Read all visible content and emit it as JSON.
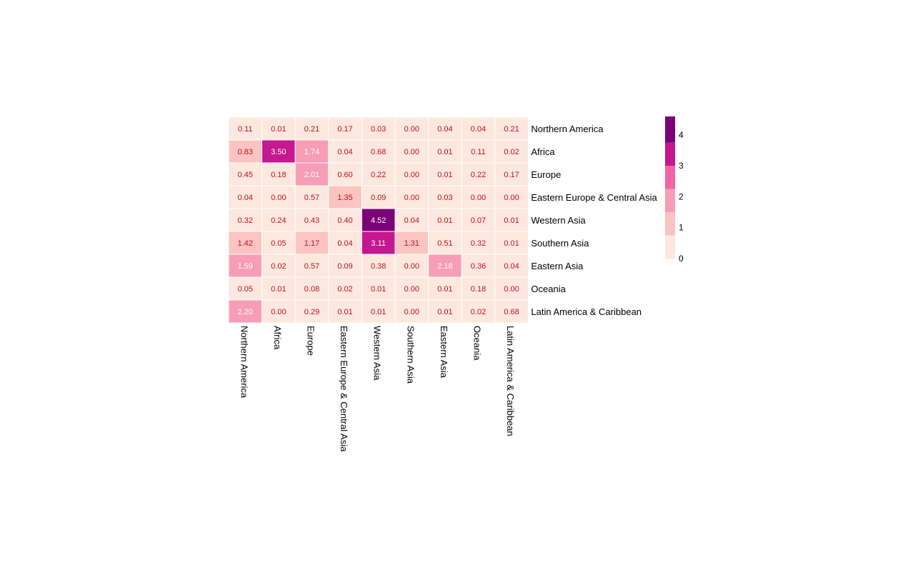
{
  "chart_data": {
    "type": "heatmap",
    "rows": [
      "Northern America",
      "Africa",
      "Europe",
      "Eastern Europe & Central Asia",
      "Western Asia",
      "Southern Asia",
      "Eastern Asia",
      "Oceania",
      "Latin America & Caribbean"
    ],
    "columns": [
      "Northern America",
      "Africa",
      "Europe",
      "Eastern Europe & Central Asia",
      "Western Asia",
      "Southern Asia",
      "Eastern Asia",
      "Oceania",
      "Latin America & Caribbean"
    ],
    "values": [
      [
        0.11,
        0.01,
        0.21,
        0.17,
        0.03,
        0.0,
        0.04,
        0.04,
        0.21
      ],
      [
        0.83,
        3.5,
        1.74,
        0.04,
        0.68,
        0.0,
        0.01,
        0.11,
        0.02
      ],
      [
        0.45,
        0.18,
        2.01,
        0.6,
        0.22,
        0.0,
        0.01,
        0.22,
        0.17
      ],
      [
        0.04,
        0.0,
        0.57,
        1.35,
        0.09,
        0.0,
        0.03,
        0.0,
        0.0
      ],
      [
        0.32,
        0.24,
        0.43,
        0.4,
        4.52,
        0.04,
        0.01,
        0.07,
        0.01
      ],
      [
        1.42,
        0.05,
        1.17,
        0.04,
        3.11,
        1.31,
        0.51,
        0.32,
        0.01
      ],
      [
        1.59,
        0.02,
        0.57,
        0.09,
        0.38,
        0.0,
        2.18,
        0.36,
        0.04
      ],
      [
        0.05,
        0.01,
        0.08,
        0.02,
        0.01,
        0.0,
        0.01,
        0.18,
        0.0
      ],
      [
        2.2,
        0.0,
        0.29,
        0.01,
        0.01,
        0.0,
        0.01,
        0.02,
        0.68
      ]
    ],
    "value_format": "0.00",
    "colorbar": {
      "bins": [
        0,
        0.75,
        1.5,
        2.25,
        3.0,
        3.75,
        4.6
      ],
      "colors": [
        "#fde8df",
        "#fbc4c0",
        "#f79db8",
        "#f066a5",
        "#c5178f",
        "#7a0177"
      ],
      "ticks": [
        0,
        1,
        2,
        3,
        4
      ],
      "range": [
        0,
        4.6
      ]
    },
    "annotation_colors": {
      "on_light": "#c0101e",
      "on_dark": "#ffffff"
    },
    "title": "",
    "xlabel": "",
    "ylabel": ""
  }
}
